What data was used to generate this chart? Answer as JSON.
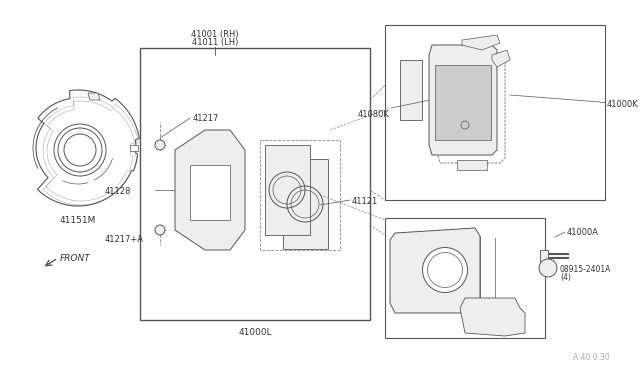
{
  "bg_color": "#ffffff",
  "line_color": "#555555",
  "dashed_color": "#888888",
  "text_color": "#333333",
  "gray_fill": "#d8d8d8",
  "light_gray": "#eeeeee",
  "watermark_color": "#aaaaaa",
  "fig_width": 6.4,
  "fig_height": 3.72,
  "dpi": 100,
  "labels": {
    "41001_RH": "41001 (RH)",
    "41011_LH": "41011 (LH)",
    "41217": "41217",
    "41128": "41128",
    "41121": "41121",
    "41217A": "41217+A",
    "41000L": "41000L",
    "41080K": "41080K",
    "41000K": "41000K",
    "41000A": "41000A",
    "08915": "08915-2401A",
    "08915b": "(4)",
    "41151M": "41151M",
    "FRONT": "FRONT",
    "watermark": "A 40 0.30"
  }
}
